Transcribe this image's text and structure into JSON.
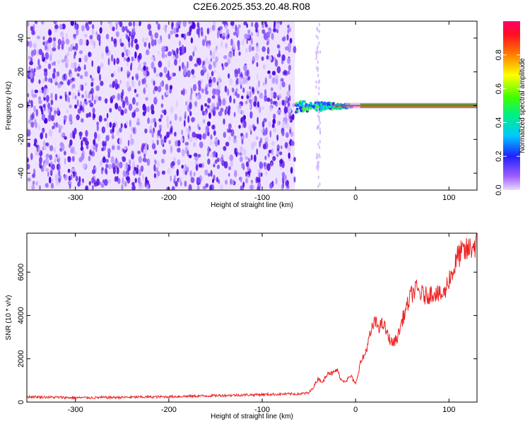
{
  "title": "C2E6.2025.353.20.48.R08",
  "chart_data": [
    {
      "type": "heatmap",
      "xlabel": "Height of straight line (km)",
      "ylabel": "Frequency (Hz)",
      "xlim": [
        -352,
        130
      ],
      "ylim": [
        -50,
        50
      ],
      "x_ticks": [
        -300,
        -200,
        -100,
        0,
        100
      ],
      "y_ticks": [
        -40,
        -20,
        0,
        20,
        40
      ],
      "colorbar": {
        "label": "Normalized spectral amplitude",
        "range": [
          0,
          1
        ],
        "ticks": [
          "0.0",
          "0.2",
          "0.4",
          "0.6",
          "0.8"
        ]
      },
      "features": {
        "noise_region_x": [
          -352,
          -65
        ],
        "signal_x": [
          -65,
          130
        ],
        "signal_frequency": 0,
        "peak_amplitude_x": [
          -25,
          130
        ]
      },
      "colors": {
        "noise": "#5a14e6",
        "peak": "#ff3333"
      }
    },
    {
      "type": "line",
      "xlabel": "Height of straight line (km)",
      "ylabel": "SNR (10 * v/v)",
      "xlim": [
        -352,
        130
      ],
      "ylim": [
        0,
        7800
      ],
      "x_ticks": [
        -300,
        -200,
        -100,
        0,
        100
      ],
      "y_ticks": [
        0,
        2000,
        4000,
        6000
      ],
      "series": [
        {
          "color": "#ee2222",
          "x": [
            -352,
            -300,
            -250,
            -200,
            -150,
            -100,
            -60,
            -50,
            -45,
            -40,
            -35,
            -30,
            -25,
            -20,
            -15,
            -10,
            -5,
            0,
            5,
            10,
            15,
            20,
            25,
            30,
            35,
            40,
            45,
            50,
            55,
            60,
            65,
            70,
            75,
            80,
            85,
            90,
            95,
            100,
            105,
            110,
            115,
            120,
            125,
            130
          ],
          "values": [
            250,
            200,
            220,
            250,
            300,
            350,
            380,
            420,
            700,
            1100,
            900,
            1400,
            1300,
            1500,
            1000,
            1000,
            1200,
            800,
            1800,
            2200,
            3000,
            3700,
            3500,
            3600,
            3000,
            2700,
            3000,
            3800,
            4400,
            5000,
            5200,
            5000,
            4900,
            5000,
            5100,
            4900,
            5000,
            5700,
            6100,
            6800,
            6900,
            7000,
            7200,
            7300
          ]
        }
      ]
    }
  ]
}
